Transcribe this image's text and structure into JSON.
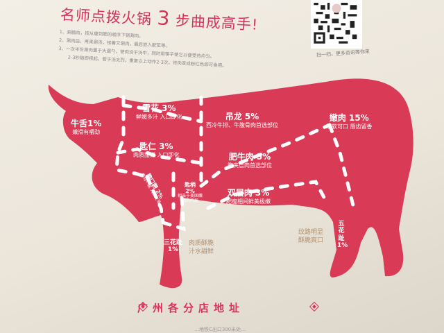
{
  "title": {
    "prefix": "名师点拨火锅",
    "number": "3",
    "suffix": "步曲成高手!"
  },
  "steps": [
    "1、涮腩肉，按从瘦到肥的顺序下锅涮肉。",
    "2、涮肉后，再来涮汤，接着又涮肉，最后放入配菜等。",
    "3、一次半份涮肉置于大漏勺，使肉没于汤中，同时用筷子使它以便受热均匀。",
    "2-3秒随即捞起，若于汤太烈，重复以上动作2-3次，待肉变成粉红色即可食用。"
  ],
  "qr_caption": "扫一扫，更多资讯等你来",
  "cuts": [
    {
      "name": "牛舌1%",
      "desc": "嫩滑有嚼劲"
    },
    {
      "name": "雪花 3%",
      "desc": "鲜嫩多汁 入口即化"
    },
    {
      "name": "匙仁 3%",
      "desc": "肉质甜嫩 入口即化"
    },
    {
      "name": "吊龙 5%",
      "desc": "西冷牛排、牛腹骨肉首选部位"
    },
    {
      "name": "肥牛肉 5%",
      "desc": "腹夹层肉首选部位"
    },
    {
      "name": "双层肉 3%",
      "desc": "肥瘦相间鲜美极嫩"
    },
    {
      "name": "嫩肉 15%",
      "desc": "细软可口 唇齿留香"
    },
    {
      "name": "胸口朥 2%",
      "desc": "脆而不腻 入口爽滑"
    },
    {
      "name": "匙柄",
      "pct": "2%",
      "desc": "相当于美国嫩肌肉内层"
    },
    {
      "name": "三花趾",
      "pct": "1%"
    },
    {
      "name": "五花趾",
      "pct": "1%"
    }
  ],
  "notes": [
    {
      "line1": "肉质酥脆",
      "line2": "汁水甜鲜"
    },
    {
      "line1": "纹路明显",
      "line2": "酥脆爽口"
    }
  ],
  "address_heading": "广州各分店地址",
  "footer_partial": "…地铁C出口300米处…",
  "colors": {
    "brand_red": "#d8325a",
    "cow_red": "#d93a55",
    "background": "#efe9df"
  }
}
